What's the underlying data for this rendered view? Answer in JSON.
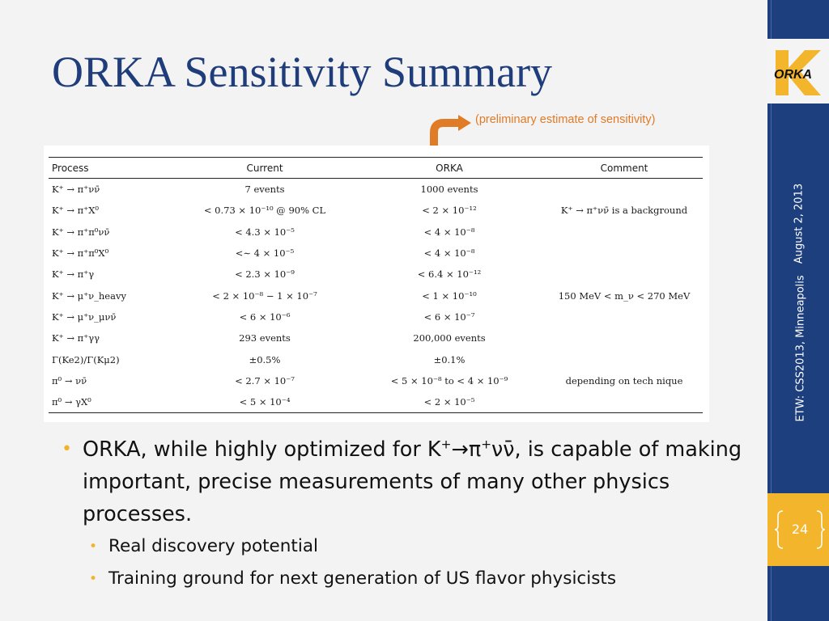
{
  "slide": {
    "title": "ORKA Sensitivity Summary",
    "note": "(preliminary estimate of sensitivity)",
    "page_number": "24",
    "sidebar_date": "August 2, 2013",
    "sidebar_venue": "ETW: CSS2013, Minneapolis",
    "logo_text": "ORKA",
    "colors": {
      "title": "#1f3d7a",
      "sidebar": "#1d3f7e",
      "accent": "#f3b52b",
      "note": "#e07b28"
    }
  },
  "table": {
    "headers": [
      "Process",
      "Current",
      "ORKA",
      "Comment"
    ],
    "rows": [
      [
        "K⁺ → π⁺νν̄",
        "7 events",
        "1000 events",
        ""
      ],
      [
        "K⁺ → π⁺X⁰",
        "< 0.73 × 10⁻¹⁰ @ 90% CL",
        "< 2 × 10⁻¹²",
        "K⁺ → π⁺νν̄ is a background"
      ],
      [
        "K⁺ → π⁺π⁰νν̄",
        "< 4.3 × 10⁻⁵",
        "< 4 × 10⁻⁸",
        ""
      ],
      [
        "K⁺ → π⁺π⁰X⁰",
        "<∼ 4 × 10⁻⁵",
        "< 4 × 10⁻⁸",
        ""
      ],
      [
        "K⁺ → π⁺γ",
        "< 2.3 × 10⁻⁹",
        "< 6.4 × 10⁻¹²",
        ""
      ],
      [
        "K⁺ → μ⁺ν_heavy",
        "< 2 × 10⁻⁸ − 1 × 10⁻⁷",
        "< 1 × 10⁻¹⁰",
        "150 MeV < m_ν < 270 MeV"
      ],
      [
        "K⁺ → μ⁺ν_μνν̄",
        "< 6 × 10⁻⁶",
        "< 6 × 10⁻⁷",
        ""
      ],
      [
        "K⁺ → π⁺γγ",
        "293 events",
        "200,000 events",
        ""
      ],
      [
        "Γ(Ke2)/Γ(Kμ2)",
        "±0.5%",
        "±0.1%",
        ""
      ],
      [
        "π⁰ → νν̄",
        "< 2.7 × 10⁻⁷",
        "< 5 × 10⁻⁸ to < 4 × 10⁻⁹",
        "depending on tech nique"
      ],
      [
        "π⁰ → γX⁰",
        "< 5 × 10⁻⁴",
        "< 2 × 10⁻⁵",
        ""
      ]
    ]
  },
  "bullets": {
    "main_prefix": "ORKA, while highly optimized for K",
    "main_sup": "+",
    "main_arrow": "→π",
    "main_sup2": "+",
    "main_nu": "νν̄",
    "main_rest": ", is capable of making important, precise measurements of many other physics processes.",
    "sub": [
      "Real discovery potential",
      "Training ground for next generation of US flavor physicists"
    ]
  }
}
